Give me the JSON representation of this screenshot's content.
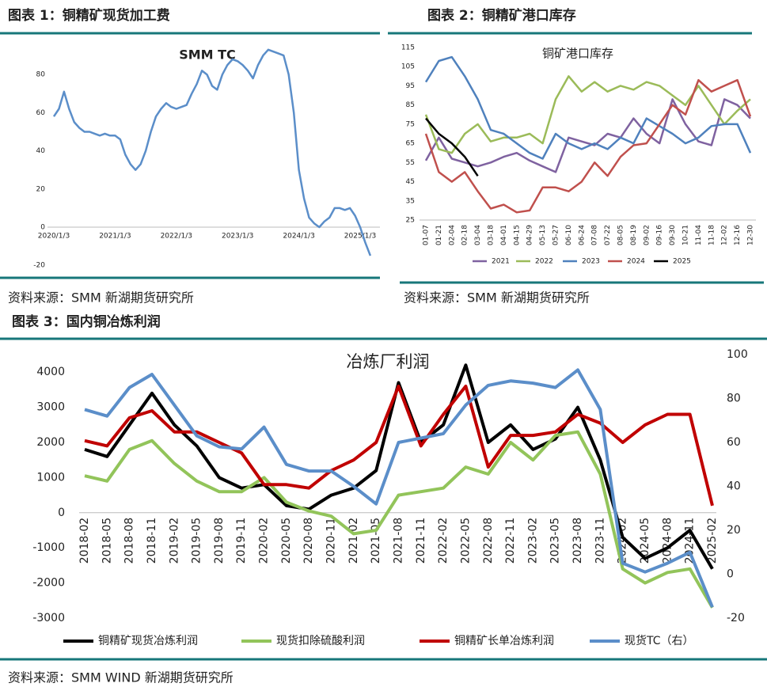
{
  "chart_data": [
    {
      "type": "line",
      "caption": "图表 1：铜精矿现货加工费",
      "title": "SMM TC",
      "source": "资料来源：SMM 新湖期货研究所",
      "categories": [
        "2020/1/3",
        null,
        null,
        null,
        null,
        null,
        null,
        null,
        null,
        null,
        null,
        null,
        "2021/1/3",
        null,
        null,
        null,
        null,
        null,
        null,
        null,
        null,
        null,
        null,
        null,
        "2022/1/3",
        null,
        null,
        null,
        null,
        null,
        null,
        null,
        null,
        null,
        null,
        null,
        "2023/1/3",
        null,
        null,
        null,
        null,
        null,
        null,
        null,
        null,
        null,
        null,
        null,
        "2024/1/3",
        null,
        null,
        null,
        null,
        null,
        null,
        null,
        null,
        null,
        null,
        null,
        "2025/1/3",
        null,
        null
      ],
      "series": [
        {
          "name": "SMM TC",
          "color": "#5b8ec9",
          "values": [
            58,
            62,
            71,
            62,
            55,
            52,
            50,
            50,
            49,
            48,
            49,
            48,
            48,
            46,
            38,
            33,
            30,
            33,
            40,
            50,
            58,
            62,
            65,
            63,
            62,
            63,
            64,
            70,
            75,
            82,
            80,
            74,
            72,
            80,
            85,
            88,
            87,
            85,
            82,
            78,
            85,
            90,
            93,
            92,
            91,
            90,
            80,
            60,
            30,
            15,
            5,
            2,
            0,
            3,
            5,
            10,
            10,
            9,
            10,
            6,
            0,
            -8,
            -15
          ]
        }
      ],
      "ylim": [
        -22,
        95
      ],
      "yticks": [
        -20,
        0,
        20,
        40,
        60,
        80
      ]
    },
    {
      "type": "line",
      "caption": "图表 2：铜精矿港口库存",
      "title": "铜矿港口库存",
      "source": "资料来源：SMM 新湖期货研究所",
      "categories": [
        "01-07",
        "01-21",
        "02-04",
        "02-18",
        "03-04",
        "03-18",
        "04-01",
        "04-15",
        "04-29",
        "05-13",
        "05-27",
        "06-10",
        "06-24",
        "07-08",
        "07-22",
        "08-05",
        "08-19",
        "09-02",
        "09-16",
        "09-30",
        "10-21",
        "11-04",
        "11-18",
        "12-02",
        "12-16",
        "12-30"
      ],
      "series": [
        {
          "name": "2021",
          "color": "#7f62a0",
          "values": [
            56,
            68,
            57,
            55,
            53,
            55,
            58,
            60,
            56,
            53,
            50,
            68,
            66,
            64,
            70,
            68,
            78,
            70,
            65,
            88,
            75,
            66,
            64,
            88,
            85,
            78
          ]
        },
        {
          "name": "2022",
          "color": "#9bbb59",
          "values": [
            80,
            62,
            60,
            70,
            75,
            66,
            68,
            68,
            70,
            65,
            88,
            100,
            92,
            97,
            92,
            95,
            93,
            97,
            95,
            90,
            85,
            95,
            85,
            75,
            82,
            88
          ]
        },
        {
          "name": "2023",
          "color": "#4f81bd",
          "values": [
            97,
            108,
            110,
            100,
            88,
            72,
            70,
            65,
            60,
            57,
            70,
            65,
            62,
            65,
            62,
            68,
            65,
            78,
            74,
            70,
            65,
            68,
            74,
            75,
            75,
            60
          ]
        },
        {
          "name": "2024",
          "color": "#c0504d",
          "values": [
            70,
            50,
            45,
            50,
            40,
            31,
            33,
            29,
            30,
            42,
            42,
            40,
            45,
            55,
            48,
            58,
            64,
            65,
            75,
            85,
            80,
            98,
            92,
            95,
            98,
            79
          ]
        },
        {
          "name": "2025",
          "color": "#000000",
          "values": [
            78,
            70,
            65,
            58,
            48,
            null,
            null,
            null,
            null,
            null,
            null,
            null,
            null,
            null,
            null,
            null,
            null,
            null,
            null,
            null,
            null,
            null,
            null,
            null,
            null,
            null
          ]
        }
      ],
      "ylim": [
        25,
        115
      ],
      "yticks": [
        25,
        35,
        45,
        55,
        65,
        75,
        85,
        95,
        105,
        115
      ]
    },
    {
      "type": "line",
      "caption": "图表 3：国内铜冶炼利润",
      "title": "冶炼厂利润",
      "source": "资料来源：SMM WIND 新湖期货研究所",
      "categories": [
        "2018-02",
        "2018-05",
        "2018-08",
        "2018-11",
        "2019-02",
        "2019-05",
        "2019-08",
        "2019-11",
        "2020-02",
        "2020-05",
        "2020-08",
        "2020-11",
        "2021-02",
        "2021-05",
        "2021-08",
        "2021-11",
        "2022-02",
        "2022-05",
        "2022-08",
        "2022-11",
        "2023-02",
        "2023-05",
        "2023-08",
        "2023-11",
        "2024-02",
        "2024-05",
        "2024-08",
        "2024-11",
        "2025-02"
      ],
      "series": [
        {
          "name": "铜精矿现货冶炼利润",
          "color": "#000000",
          "values": [
            1800,
            1600,
            2500,
            3400,
            2500,
            1900,
            1000,
            700,
            800,
            200,
            100,
            500,
            700,
            1200,
            3700,
            2000,
            2500,
            4200,
            2000,
            2500,
            1800,
            2100,
            3000,
            1500,
            -700,
            -1300,
            -1000,
            -500,
            -1600
          ]
        },
        {
          "name": "现货扣除硫酸利润",
          "color": "#92c45a",
          "values": [
            1050,
            900,
            1800,
            2050,
            1400,
            900,
            600,
            600,
            1000,
            300,
            50,
            -100,
            -600,
            -500,
            500,
            600,
            700,
            1300,
            1100,
            2000,
            1500,
            2200,
            2300,
            1100,
            -1600,
            -2000,
            -1700,
            -1600,
            -2700
          ]
        },
        {
          "name": "铜精矿长单冶炼利润",
          "color": "#c00000",
          "values": [
            2050,
            1900,
            2700,
            2900,
            2300,
            2300,
            2000,
            1700,
            800,
            800,
            700,
            1200,
            1500,
            2000,
            3600,
            1900,
            2800,
            3600,
            1300,
            2200,
            2200,
            2300,
            2800,
            2550,
            2000,
            2500,
            2800,
            2800,
            200
          ]
        },
        {
          "name": "现货TC（右）",
          "color": "#5b8ec9",
          "axis": "y2",
          "values": [
            75,
            72,
            85,
            91,
            77,
            63,
            58,
            57,
            67,
            50,
            47,
            47,
            40,
            32,
            60,
            62,
            64,
            77,
            86,
            88,
            87,
            85,
            93,
            75,
            5,
            1,
            5,
            10,
            -15
          ]
        }
      ],
      "ylim": [
        -3000,
        4500
      ],
      "yticks": [
        -3000,
        -2000,
        -1000,
        0,
        1000,
        2000,
        3000,
        4000
      ],
      "y2lim": [
        -20,
        100
      ],
      "y2ticks": [
        -20,
        0,
        20,
        40,
        60,
        80,
        100
      ]
    }
  ]
}
